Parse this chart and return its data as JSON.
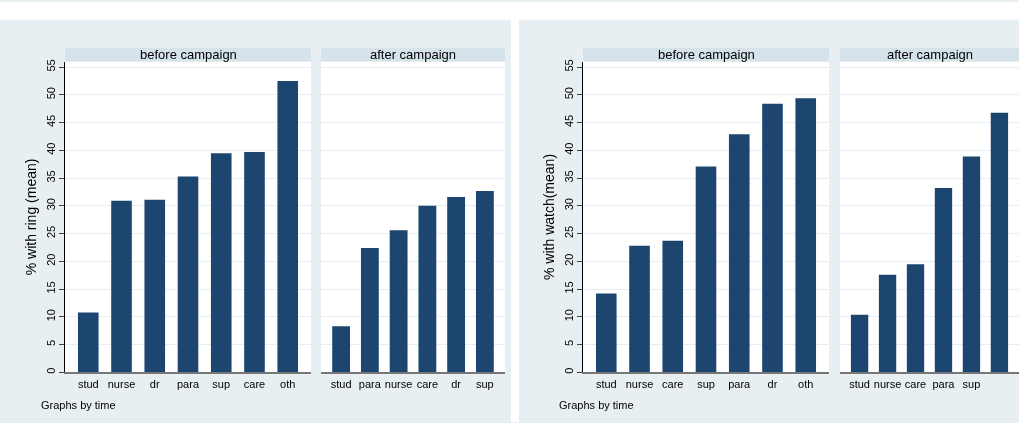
{
  "chart_data": [
    {
      "type": "bar",
      "title": "before campaign",
      "ylabel": "% with ring (mean)",
      "categories": [
        "stud",
        "nurse",
        "dr",
        "para",
        "sup",
        "care",
        "oth"
      ],
      "values": [
        10.8,
        30.9,
        31.1,
        35.3,
        39.5,
        39.7,
        52.5
      ],
      "color": "#1c4670",
      "ylim": [
        0,
        56
      ],
      "yticks": [
        0,
        5,
        10,
        15,
        20,
        25,
        30,
        35,
        40,
        45,
        50,
        55
      ],
      "grid": "y",
      "annotations": [
        "Graphs by time"
      ]
    },
    {
      "type": "bar",
      "title": "after campaign",
      "categories": [
        "stud",
        "para",
        "nurse",
        "care",
        "dr",
        "sup"
      ],
      "values": [
        8.3,
        22.4,
        25.6,
        30.0,
        31.6,
        32.7
      ],
      "color": "#1c4670",
      "ylim": [
        0,
        56
      ],
      "yticks": [
        0,
        5,
        10,
        15,
        20,
        25,
        30,
        35,
        40,
        45,
        50,
        55
      ],
      "grid": "y",
      "tick_labels": "x"
    },
    {
      "type": "bar",
      "title": "before campaign",
      "ylabel": "% with watch(mean)",
      "categories": [
        "stud",
        "nurse",
        "care",
        "sup",
        "para",
        "dr",
        "oth"
      ],
      "values": [
        14.2,
        22.8,
        23.7,
        37.1,
        42.9,
        48.4,
        49.4
      ],
      "color": "#1c4670",
      "ylim": [
        0,
        56
      ],
      "yticks": [
        0,
        5,
        10,
        15,
        20,
        25,
        30,
        35,
        40,
        45,
        50,
        55
      ],
      "grid": "y",
      "annotations": [
        "Graphs by time"
      ]
    },
    {
      "type": "bar",
      "title": "after campaign",
      "categories": [
        "stud",
        "nurse",
        "care",
        "para",
        "sup",
        null
      ],
      "values": [
        10.4,
        17.6,
        19.5,
        33.2,
        38.9,
        46.8
      ],
      "color": "#1c4670",
      "ylim": [
        0,
        56
      ],
      "yticks": [
        0,
        5,
        10,
        15,
        20,
        25,
        30,
        35,
        40,
        45,
        50,
        55
      ],
      "grid": "y",
      "tick_labels": "x"
    }
  ]
}
